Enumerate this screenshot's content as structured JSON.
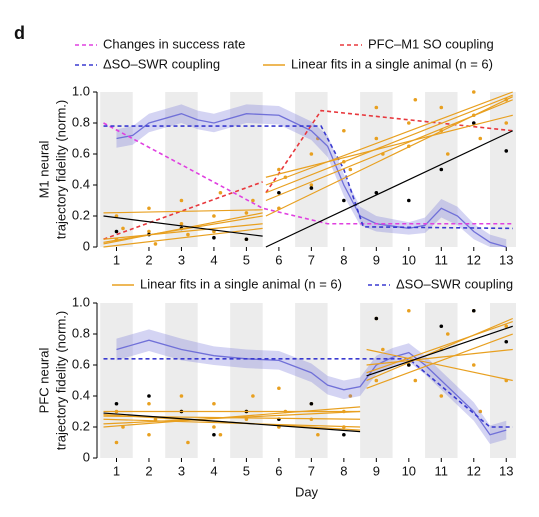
{
  "panel_label": "d",
  "chart_data": [
    {
      "type": "line",
      "ylabel": [
        "M1 neural",
        "trajectory fidelity (norm.)"
      ],
      "xlim": [
        0.4,
        13.3
      ],
      "xticks": [
        1,
        2,
        3,
        4,
        5,
        6,
        7,
        8,
        9,
        10,
        11,
        12,
        13
      ],
      "ylim": [
        0,
        1
      ],
      "yticks": [
        0,
        0.2,
        0.4,
        0.6,
        0.8,
        {
          "value": 1,
          "label": "1.0"
        }
      ],
      "series": [
        {
          "type": "scatter",
          "color": "#e8a020",
          "x": [
            1,
            1,
            1.2,
            2,
            2,
            2.2,
            3,
            3,
            3.2,
            4,
            4,
            4.2,
            5,
            5,
            5.2,
            6,
            6,
            6.2,
            7,
            7,
            7.2,
            8,
            8,
            8.2,
            9,
            9,
            9.2,
            10,
            10,
            10.2,
            11,
            11,
            11.2,
            12,
            12,
            12.2,
            13,
            13
          ],
          "values": [
            0.05,
            0.2,
            0.12,
            0.1,
            0.25,
            0.02,
            0.15,
            0.3,
            0.08,
            0.2,
            0.1,
            0.35,
            0.22,
            0.05,
            0.3,
            0.5,
            0.25,
            0.45,
            0.6,
            0.4,
            0.7,
            0.55,
            0.75,
            0.5,
            0.7,
            0.9,
            0.6,
            0.8,
            0.65,
            0.95,
            0.75,
            0.9,
            0.6,
            0.85,
            1.0,
            0.7,
            0.95,
            0.8
          ]
        },
        {
          "type": "scatter",
          "color": "#000000",
          "x": [
            1,
            2,
            3,
            4,
            5,
            6,
            7,
            8,
            9,
            10,
            11,
            12,
            13
          ],
          "values": [
            0.1,
            0.08,
            0.12,
            0.06,
            0.05,
            0.35,
            0.38,
            0.3,
            0.35,
            0.3,
            0.5,
            0.8,
            0.62
          ]
        },
        {
          "type": "band",
          "color": "#7070d8",
          "x": [
            1,
            1.5,
            2,
            3,
            3.5,
            4,
            5,
            6,
            6.5,
            7,
            7.5,
            8,
            8.5,
            9,
            10,
            10.5,
            11,
            11.5,
            12,
            12.5,
            13
          ],
          "values": [
            0.7,
            0.72,
            0.8,
            0.86,
            0.82,
            0.8,
            0.86,
            0.85,
            0.8,
            0.75,
            0.65,
            0.4,
            0.2,
            0.15,
            0.12,
            0.14,
            0.25,
            0.2,
            0.1,
            0.03,
            0.0
          ],
          "lower": [
            0.64,
            0.66,
            0.74,
            0.8,
            0.76,
            0.74,
            0.8,
            0.79,
            0.74,
            0.69,
            0.58,
            0.33,
            0.14,
            0.1,
            0.08,
            0.09,
            0.19,
            0.14,
            0.05,
            0.0,
            0.0
          ],
          "upper": [
            0.76,
            0.78,
            0.86,
            0.92,
            0.88,
            0.86,
            0.92,
            0.91,
            0.86,
            0.81,
            0.72,
            0.47,
            0.26,
            0.2,
            0.16,
            0.19,
            0.31,
            0.26,
            0.15,
            0.08,
            0.05
          ]
        },
        {
          "name": "Changes in success rate",
          "color": "#e040e0",
          "dashed": true,
          "x": [
            0.6,
            5.5,
            7.5,
            13.2
          ],
          "values": [
            0.8,
            0.25,
            0.15,
            0.15
          ]
        },
        {
          "name": "PFC–M1 SO coupling",
          "color": "#e8383d",
          "dashed": true,
          "x": [
            0.6,
            5.5,
            5.55,
            5.6,
            7.3,
            13.2
          ],
          "values": [
            0.05,
            0.42,
            null,
            0.35,
            0.88,
            0.75
          ]
        },
        {
          "name": "ΔSO–SWR coupling",
          "color": "#3a3ad0",
          "dashed": true,
          "x": [
            0.6,
            7.3,
            8,
            8.6,
            13.2
          ],
          "values": [
            0.78,
            0.78,
            0.5,
            0.13,
            0.12
          ]
        },
        {
          "name": "Linear fits in a single animal (n = 6)",
          "color": "#e8a020",
          "x": [
            0.6,
            5.5
          ],
          "values": [
            0.22,
            0.24
          ]
        },
        {
          "color": "#e8a020",
          "x": [
            0.6,
            5.5
          ],
          "values": [
            0.02,
            0.22
          ]
        },
        {
          "color": "#e8a020",
          "x": [
            0.6,
            5.5
          ],
          "values": [
            0.05,
            0.15
          ]
        },
        {
          "color": "#e8a020",
          "x": [
            0.6,
            5.5
          ],
          "values": [
            0.0,
            0.12
          ]
        },
        {
          "color": "#e8a020",
          "x": [
            0.6,
            5.5
          ],
          "values": [
            0.03,
            0.2
          ]
        },
        {
          "color": "#e8a020",
          "x": [
            5.6,
            13.2
          ],
          "values": [
            0.35,
            0.98
          ]
        },
        {
          "color": "#e8a020",
          "x": [
            5.6,
            13.2
          ],
          "values": [
            0.4,
            1.0
          ]
        },
        {
          "color": "#e8a020",
          "x": [
            5.6,
            13.2
          ],
          "values": [
            0.3,
            0.95
          ]
        },
        {
          "color": "#e8a020",
          "x": [
            5.6,
            13.2
          ],
          "values": [
            0.2,
            0.97
          ]
        },
        {
          "color": "#e8a020",
          "x": [
            5.6,
            13.2
          ],
          "values": [
            0.45,
            0.85
          ]
        },
        {
          "color": "#000000",
          "x": [
            0.6,
            5.5
          ],
          "values": [
            0.2,
            0.07
          ]
        },
        {
          "color": "#000000",
          "x": [
            5.6,
            13.2
          ],
          "values": [
            0.0,
            0.75
          ]
        }
      ]
    },
    {
      "type": "line",
      "ylabel": [
        "PFC neural",
        "trajectory fidelity (norm.)"
      ],
      "xlabel": "Day",
      "xlim": [
        0.4,
        13.3
      ],
      "xticks": [
        1,
        2,
        3,
        4,
        5,
        6,
        7,
        8,
        9,
        10,
        11,
        12,
        13
      ],
      "ylim": [
        0,
        1
      ],
      "yticks": [
        0,
        0.2,
        0.4,
        0.6,
        0.8,
        {
          "value": 1,
          "label": "1.0"
        }
      ],
      "series": [
        {
          "type": "scatter",
          "color": "#e8a020",
          "x": [
            1,
            1,
            1.2,
            2,
            2,
            2.2,
            3,
            3,
            3.2,
            4,
            4,
            4.2,
            5,
            5,
            5.2,
            6,
            6,
            6.2,
            7,
            7,
            7.2,
            8,
            8,
            8.2,
            9,
            9,
            9.2,
            10,
            10,
            10.2,
            11,
            11,
            11.2,
            12,
            12,
            12.2,
            13,
            13
          ],
          "values": [
            0.1,
            0.3,
            0.2,
            0.15,
            0.35,
            0.25,
            0.3,
            0.4,
            0.1,
            0.2,
            0.35,
            0.15,
            0.25,
            0.3,
            0.4,
            0.2,
            0.45,
            0.3,
            0.25,
            0.35,
            0.15,
            0.3,
            0.2,
            0.4,
            0.5,
            0.9,
            0.7,
            0.6,
            0.95,
            0.5,
            0.7,
            0.4,
            0.8,
            0.6,
            0.95,
            0.3,
            0.85,
            0.5
          ]
        },
        {
          "type": "scatter",
          "color": "#000000",
          "x": [
            1,
            2,
            3,
            4,
            5,
            6,
            7,
            8,
            9,
            10,
            11,
            12,
            13
          ],
          "values": [
            0.35,
            0.4,
            0.3,
            0.15,
            0.3,
            0.25,
            0.35,
            0.15,
            0.9,
            0.6,
            0.85,
            0.95,
            0.75
          ]
        },
        {
          "type": "band",
          "color": "#7070d8",
          "x": [
            1,
            2,
            3,
            4,
            5,
            6,
            7,
            7.5,
            8,
            8.5,
            9,
            9.5,
            10,
            10.5,
            11,
            12,
            12.5,
            13
          ],
          "values": [
            0.7,
            0.76,
            0.7,
            0.66,
            0.64,
            0.63,
            0.55,
            0.47,
            0.44,
            0.46,
            0.6,
            0.65,
            0.68,
            0.6,
            0.5,
            0.3,
            0.15,
            0.18
          ],
          "lower": [
            0.63,
            0.69,
            0.63,
            0.6,
            0.58,
            0.57,
            0.49,
            0.41,
            0.38,
            0.4,
            0.54,
            0.59,
            0.62,
            0.54,
            0.44,
            0.24,
            0.09,
            0.12
          ],
          "upper": [
            0.77,
            0.83,
            0.77,
            0.72,
            0.7,
            0.69,
            0.61,
            0.53,
            0.5,
            0.52,
            0.66,
            0.71,
            0.74,
            0.66,
            0.56,
            0.36,
            0.21,
            0.24
          ]
        },
        {
          "name": "Linear fits in a single animal (n = 6)",
          "color": "#e8a020",
          "x": [
            0.6,
            8.5
          ],
          "values": [
            0.25,
            0.2
          ]
        },
        {
          "name": "ΔSO–SWR coupling",
          "color": "#3a3ad0",
          "dashed": true,
          "x": [
            0.6,
            10,
            12.5,
            13.2
          ],
          "values": [
            0.64,
            0.64,
            0.2,
            0.2
          ]
        },
        {
          "color": "#e8a020",
          "x": [
            0.6,
            8.5
          ],
          "values": [
            0.3,
            0.3
          ]
        },
        {
          "color": "#e8a020",
          "x": [
            0.6,
            8.5
          ],
          "values": [
            0.2,
            0.33
          ]
        },
        {
          "color": "#e8a020",
          "x": [
            0.6,
            8.5
          ],
          "values": [
            0.27,
            0.25
          ]
        },
        {
          "color": "#e8a020",
          "x": [
            0.6,
            8.5
          ],
          "values": [
            0.22,
            0.3
          ]
        },
        {
          "color": "#e8a020",
          "x": [
            0.6,
            8.5
          ],
          "values": [
            0.28,
            0.18
          ]
        },
        {
          "color": "#e8a020",
          "x": [
            8.7,
            13.2
          ],
          "values": [
            0.55,
            0.88
          ]
        },
        {
          "color": "#e8a020",
          "x": [
            8.7,
            13.2
          ],
          "values": [
            0.5,
            0.9
          ]
        },
        {
          "color": "#e8a020",
          "x": [
            8.7,
            13.2
          ],
          "values": [
            0.6,
            0.7
          ]
        },
        {
          "color": "#e8a020",
          "x": [
            8.7,
            13.2
          ],
          "values": [
            0.7,
            0.5
          ]
        },
        {
          "color": "#e8a020",
          "x": [
            8.7,
            13.2
          ],
          "values": [
            0.45,
            0.8
          ]
        },
        {
          "color": "#000000",
          "x": [
            0.6,
            8.5
          ],
          "values": [
            0.29,
            0.17
          ]
        },
        {
          "color": "#000000",
          "x": [
            8.7,
            13.2
          ],
          "values": [
            0.53,
            0.85
          ]
        }
      ]
    }
  ]
}
